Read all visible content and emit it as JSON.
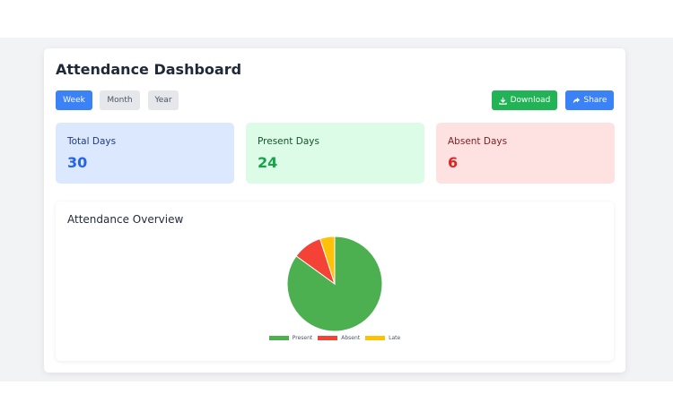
{
  "dashboard": {
    "title": "Attendance Dashboard",
    "period_tabs": [
      {
        "label": "Week",
        "active": true
      },
      {
        "label": "Month",
        "active": false
      },
      {
        "label": "Year",
        "active": false
      }
    ],
    "actions": {
      "download_label": "Download",
      "share_label": "Share"
    }
  },
  "stats": [
    {
      "label": "Total Days",
      "value": "30",
      "bg": "#dbe8fe",
      "label_color": "#1e3a8a",
      "value_color": "#2563eb"
    },
    {
      "label": "Present Days",
      "value": "24",
      "bg": "#dcfce7",
      "label_color": "#14532d",
      "value_color": "#16a34a"
    },
    {
      "label": "Absent Days",
      "value": "6",
      "bg": "#fee2e2",
      "label_color": "#7f1d1d",
      "value_color": "#dc2626"
    }
  ],
  "chart": {
    "title": "Attendance Overview"
  },
  "chart_data": {
    "type": "pie",
    "categories": [
      "Present",
      "Absent",
      "Late"
    ],
    "values": [
      85,
      10,
      5
    ],
    "colors": [
      "#4caf50",
      "#f44336",
      "#ffc107"
    ],
    "legend_position": "bottom"
  },
  "icons": {
    "download": "download-icon",
    "share": "share-icon"
  }
}
